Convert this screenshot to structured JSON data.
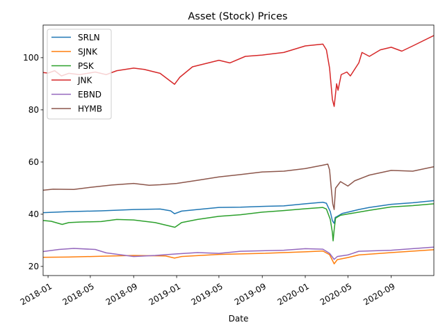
{
  "chart_data": {
    "type": "line",
    "title": "Asset (Stock) Prices",
    "xlabel": "Date",
    "ylabel": "",
    "x_range": [
      "2017-12-18",
      "2020-12-31"
    ],
    "ylim": [
      16.5,
      112.5
    ],
    "x_ticks": [
      "2018-01",
      "2018-05",
      "2018-09",
      "2019-01",
      "2019-05",
      "2019-09",
      "2020-01",
      "2020-05",
      "2020-09"
    ],
    "y_ticks": [
      20,
      40,
      60,
      80,
      100
    ],
    "grid": false,
    "legend_position": "top-left",
    "series": [
      {
        "name": "SRLN",
        "color": "#1f77b4",
        "points": [
          [
            "2017-12-18",
            40.6
          ],
          [
            "2018-03-01",
            41.0
          ],
          [
            "2018-06-01",
            41.3
          ],
          [
            "2018-09-01",
            41.8
          ],
          [
            "2018-11-15",
            42.0
          ],
          [
            "2018-12-15",
            41.3
          ],
          [
            "2018-12-26",
            40.2
          ],
          [
            "2019-01-15",
            41.2
          ],
          [
            "2019-03-01",
            41.8
          ],
          [
            "2019-05-01",
            42.6
          ],
          [
            "2019-07-01",
            42.7
          ],
          [
            "2019-09-01",
            43.0
          ],
          [
            "2019-11-01",
            43.2
          ],
          [
            "2020-01-01",
            44.0
          ],
          [
            "2020-02-20",
            44.6
          ],
          [
            "2020-03-01",
            44.2
          ],
          [
            "2020-03-12",
            41.0
          ],
          [
            "2020-03-18",
            37.5
          ],
          [
            "2020-03-23",
            36.5
          ],
          [
            "2020-03-26",
            38.8
          ],
          [
            "2020-04-01",
            39.2
          ],
          [
            "2020-04-15",
            40.3
          ],
          [
            "2020-05-01",
            40.8
          ],
          [
            "2020-06-01",
            41.8
          ],
          [
            "2020-07-01",
            42.6
          ],
          [
            "2020-09-01",
            43.8
          ],
          [
            "2020-11-01",
            44.4
          ],
          [
            "2020-12-31",
            45.2
          ]
        ]
      },
      {
        "name": "SJNK",
        "color": "#ff7f0e",
        "points": [
          [
            "2017-12-18",
            23.5
          ],
          [
            "2018-03-01",
            23.6
          ],
          [
            "2018-06-01",
            23.9
          ],
          [
            "2018-09-01",
            24.2
          ],
          [
            "2018-12-01",
            24.0
          ],
          [
            "2018-12-26",
            23.2
          ],
          [
            "2019-01-15",
            23.8
          ],
          [
            "2019-05-01",
            24.6
          ],
          [
            "2019-09-01",
            25.0
          ],
          [
            "2020-01-01",
            25.6
          ],
          [
            "2020-02-20",
            25.9
          ],
          [
            "2020-03-10",
            24.5
          ],
          [
            "2020-03-23",
            21.0
          ],
          [
            "2020-04-01",
            22.6
          ],
          [
            "2020-05-01",
            23.4
          ],
          [
            "2020-06-01",
            24.4
          ],
          [
            "2020-09-01",
            25.3
          ],
          [
            "2020-12-31",
            26.4
          ]
        ]
      },
      {
        "name": "PSK",
        "color": "#2ca02c",
        "points": [
          [
            "2017-12-18",
            37.6
          ],
          [
            "2018-01-10",
            37.3
          ],
          [
            "2018-02-10",
            36.1
          ],
          [
            "2018-03-01",
            36.8
          ],
          [
            "2018-04-01",
            37.0
          ],
          [
            "2018-06-01",
            37.2
          ],
          [
            "2018-07-15",
            38.0
          ],
          [
            "2018-09-01",
            37.8
          ],
          [
            "2018-10-01",
            37.3
          ],
          [
            "2018-11-01",
            36.8
          ],
          [
            "2018-12-27",
            35.0
          ],
          [
            "2019-01-15",
            36.8
          ],
          [
            "2019-03-01",
            38.0
          ],
          [
            "2019-05-01",
            39.2
          ],
          [
            "2019-07-01",
            39.8
          ],
          [
            "2019-09-01",
            40.8
          ],
          [
            "2019-11-01",
            41.4
          ],
          [
            "2020-01-01",
            42.1
          ],
          [
            "2020-02-20",
            42.6
          ],
          [
            "2020-03-01",
            42.0
          ],
          [
            "2020-03-12",
            38.0
          ],
          [
            "2020-03-18",
            33.0
          ],
          [
            "2020-03-20",
            29.8
          ],
          [
            "2020-03-23",
            34.0
          ],
          [
            "2020-03-27",
            38.5
          ],
          [
            "2020-04-10",
            39.6
          ],
          [
            "2020-05-01",
            40.1
          ],
          [
            "2020-06-01",
            40.8
          ],
          [
            "2020-07-01",
            41.5
          ],
          [
            "2020-09-01",
            42.8
          ],
          [
            "2020-11-01",
            43.3
          ],
          [
            "2020-12-31",
            44.0
          ]
        ]
      },
      {
        "name": "JNK",
        "color": "#d62728",
        "points": [
          [
            "2017-12-18",
            94.3
          ],
          [
            "2018-01-01",
            94.1
          ],
          [
            "2018-01-20",
            95.0
          ],
          [
            "2018-02-08",
            93.0
          ],
          [
            "2018-03-01",
            94.0
          ],
          [
            "2018-04-01",
            93.5
          ],
          [
            "2018-05-15",
            94.5
          ],
          [
            "2018-06-15",
            93.5
          ],
          [
            "2018-07-15",
            95.0
          ],
          [
            "2018-09-01",
            96.0
          ],
          [
            "2018-10-01",
            95.5
          ],
          [
            "2018-11-15",
            94.0
          ],
          [
            "2018-12-26",
            89.8
          ],
          [
            "2019-01-10",
            92.5
          ],
          [
            "2019-02-15",
            96.5
          ],
          [
            "2019-05-01",
            99.0
          ],
          [
            "2019-06-01",
            98.0
          ],
          [
            "2019-07-15",
            100.5
          ],
          [
            "2019-09-01",
            101.0
          ],
          [
            "2019-10-01",
            101.5
          ],
          [
            "2019-11-01",
            102.0
          ],
          [
            "2020-01-01",
            104.5
          ],
          [
            "2020-02-20",
            105.2
          ],
          [
            "2020-03-01",
            103.0
          ],
          [
            "2020-03-10",
            96.0
          ],
          [
            "2020-03-18",
            84.0
          ],
          [
            "2020-03-23",
            81.3
          ],
          [
            "2020-03-30",
            90.0
          ],
          [
            "2020-04-03",
            87.5
          ],
          [
            "2020-04-12",
            93.5
          ],
          [
            "2020-04-28",
            94.5
          ],
          [
            "2020-05-08",
            93.0
          ],
          [
            "2020-06-01",
            98.0
          ],
          [
            "2020-06-10",
            102.0
          ],
          [
            "2020-07-01",
            100.5
          ],
          [
            "2020-08-01",
            103.0
          ],
          [
            "2020-09-01",
            104.0
          ],
          [
            "2020-10-01",
            102.5
          ],
          [
            "2020-11-01",
            104.5
          ],
          [
            "2020-12-31",
            108.5
          ]
        ]
      },
      {
        "name": "EBND",
        "color": "#9467bd",
        "points": [
          [
            "2017-12-18",
            25.7
          ],
          [
            "2018-02-01",
            26.5
          ],
          [
            "2018-03-15",
            26.9
          ],
          [
            "2018-05-15",
            26.5
          ],
          [
            "2018-06-15",
            25.2
          ],
          [
            "2018-09-01",
            23.8
          ],
          [
            "2018-11-01",
            24.2
          ],
          [
            "2019-01-01",
            24.8
          ],
          [
            "2019-03-01",
            25.3
          ],
          [
            "2019-05-01",
            25.0
          ],
          [
            "2019-07-01",
            25.8
          ],
          [
            "2019-09-01",
            26.0
          ],
          [
            "2019-11-01",
            26.2
          ],
          [
            "2020-01-01",
            26.8
          ],
          [
            "2020-02-20",
            26.6
          ],
          [
            "2020-03-10",
            25.0
          ],
          [
            "2020-03-23",
            22.7
          ],
          [
            "2020-04-01",
            23.8
          ],
          [
            "2020-05-01",
            24.4
          ],
          [
            "2020-06-01",
            25.8
          ],
          [
            "2020-09-01",
            26.2
          ],
          [
            "2020-12-31",
            27.4
          ]
        ]
      },
      {
        "name": "HYMB",
        "color": "#8c564b",
        "points": [
          [
            "2017-12-18",
            49.2
          ],
          [
            "2018-01-15",
            49.6
          ],
          [
            "2018-03-15",
            49.5
          ],
          [
            "2018-05-01",
            50.3
          ],
          [
            "2018-07-01",
            51.2
          ],
          [
            "2018-09-01",
            51.8
          ],
          [
            "2018-10-15",
            51.1
          ],
          [
            "2018-11-15",
            51.3
          ],
          [
            "2019-01-01",
            51.8
          ],
          [
            "2019-03-01",
            53.0
          ],
          [
            "2019-05-01",
            54.3
          ],
          [
            "2019-07-01",
            55.2
          ],
          [
            "2019-09-01",
            56.2
          ],
          [
            "2019-11-01",
            56.5
          ],
          [
            "2020-01-01",
            57.5
          ],
          [
            "2020-02-20",
            58.8
          ],
          [
            "2020-03-05",
            59.2
          ],
          [
            "2020-03-10",
            57.0
          ],
          [
            "2020-03-14",
            51.0
          ],
          [
            "2020-03-19",
            44.0
          ],
          [
            "2020-03-23",
            41.8
          ],
          [
            "2020-03-27",
            50.0
          ],
          [
            "2020-04-10",
            52.5
          ],
          [
            "2020-05-01",
            50.8
          ],
          [
            "2020-05-20",
            52.8
          ],
          [
            "2020-07-01",
            55.0
          ],
          [
            "2020-09-01",
            56.8
          ],
          [
            "2020-11-01",
            56.5
          ],
          [
            "2020-12-31",
            58.2
          ]
        ]
      }
    ]
  }
}
